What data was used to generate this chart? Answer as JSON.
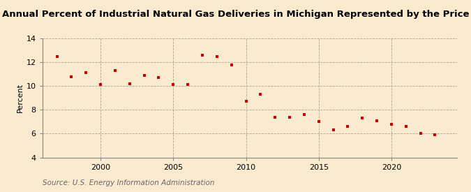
{
  "title": "Annual Percent of Industrial Natural Gas Deliveries in Michigan Represented by the Price",
  "ylabel": "Percent",
  "source": "Source: U.S. Energy Information Administration",
  "years": [
    1997,
    1998,
    1999,
    2000,
    2001,
    2002,
    2003,
    2004,
    2005,
    2006,
    2007,
    2008,
    2009,
    2010,
    2011,
    2012,
    2013,
    2014,
    2015,
    2016,
    2017,
    2018,
    2019,
    2020,
    2021,
    2022,
    2023
  ],
  "values": [
    12.5,
    10.8,
    11.1,
    10.1,
    11.3,
    10.2,
    10.9,
    10.7,
    10.1,
    10.1,
    12.6,
    12.5,
    11.8,
    8.7,
    9.3,
    7.4,
    7.4,
    7.6,
    7.0,
    6.3,
    6.6,
    7.3,
    7.1,
    6.8,
    6.6,
    6.0,
    5.9
  ],
  "ylim": [
    4,
    14
  ],
  "yticks": [
    4,
    6,
    8,
    10,
    12,
    14
  ],
  "xlim": [
    1996.0,
    2024.5
  ],
  "xticks": [
    2000,
    2005,
    2010,
    2015,
    2020
  ],
  "marker_color": "#cc0000",
  "marker": "s",
  "marker_size": 3.5,
  "bg_color": "#faebd0",
  "grid_color": "#b0a090",
  "title_fontsize": 9.5,
  "label_fontsize": 8,
  "tick_fontsize": 8,
  "source_fontsize": 7.5
}
